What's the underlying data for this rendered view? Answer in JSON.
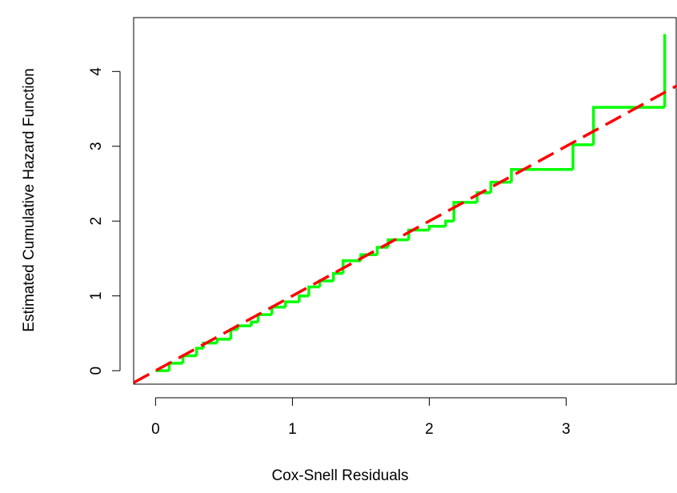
{
  "chart_data": {
    "type": "step",
    "x_label": "Cox-Snell Residuals",
    "y_label": "Estimated Cumulative Hazard Function",
    "xlim": [
      -0.16,
      3.81
    ],
    "ylim": [
      -0.18,
      4.72
    ],
    "xticks": [
      0,
      1,
      2,
      3
    ],
    "yticks": [
      0,
      1,
      2,
      3,
      4
    ],
    "series": [
      {
        "color": "#00ff00",
        "x": [
          0.0,
          0.1,
          0.2,
          0.3,
          0.35,
          0.45,
          0.55,
          0.6,
          0.7,
          0.75,
          0.85,
          0.95,
          1.05,
          1.12,
          1.2,
          1.3,
          1.37,
          1.5,
          1.62,
          1.7,
          1.85,
          2.0,
          2.12,
          2.18,
          2.35,
          2.45,
          2.6,
          3.05,
          3.2,
          3.72
        ],
        "values": [
          0.0,
          0.1,
          0.2,
          0.3,
          0.37,
          0.42,
          0.55,
          0.6,
          0.65,
          0.75,
          0.85,
          0.92,
          1.0,
          1.12,
          1.2,
          1.3,
          1.47,
          1.55,
          1.65,
          1.75,
          1.88,
          1.93,
          2.0,
          2.25,
          2.38,
          2.52,
          2.69,
          3.02,
          3.52,
          4.5
        ]
      }
    ],
    "reference_line": {
      "intercept": 0,
      "slope": 1,
      "color": "#ff0000",
      "dashed": true
    }
  }
}
